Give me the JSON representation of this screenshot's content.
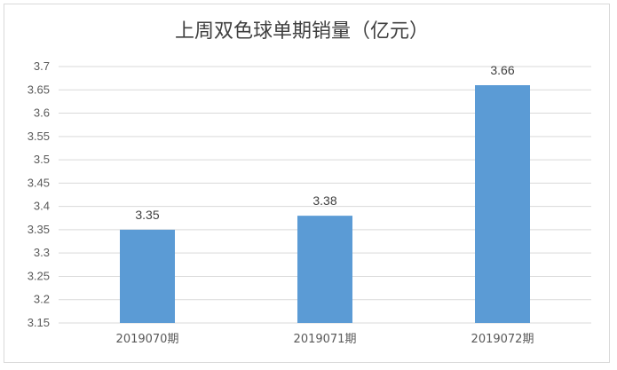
{
  "chart_data": {
    "type": "bar",
    "title": "上周双色球单期销量（亿元）",
    "categories": [
      "2019070期",
      "2019071期",
      "2019072期"
    ],
    "values": [
      3.35,
      3.38,
      3.66
    ],
    "data_labels": [
      "3.35",
      "3.38",
      "3.66"
    ],
    "ylim": [
      3.15,
      3.7
    ],
    "y_ticks": [
      "3.15",
      "3.2",
      "3.25",
      "3.3",
      "3.35",
      "3.4",
      "3.45",
      "3.5",
      "3.55",
      "3.6",
      "3.65",
      "3.7"
    ],
    "xlabel": "",
    "ylabel": "",
    "grid": true,
    "legend": "none",
    "bar_color": "#5B9BD5",
    "grid_color": "#d9d9d9"
  }
}
